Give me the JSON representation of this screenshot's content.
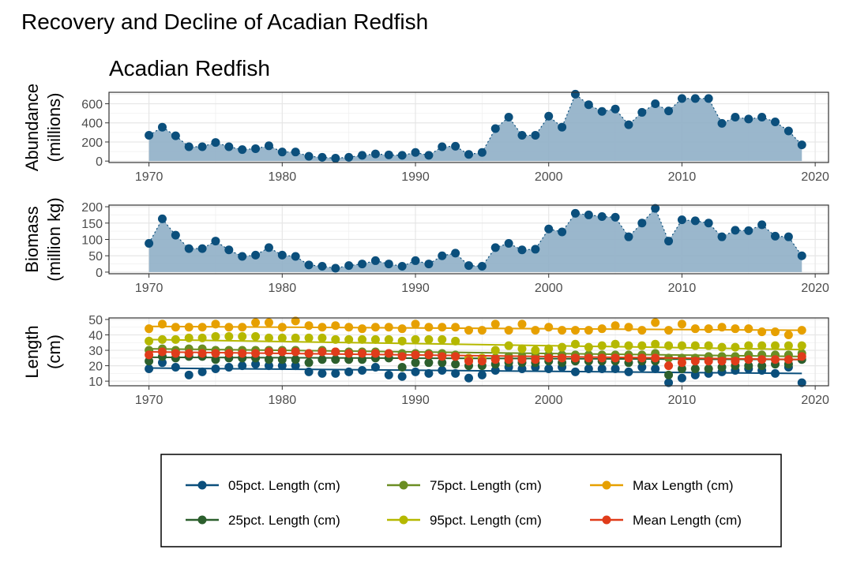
{
  "page_title": "Recovery and Decline of Acadian Redfish",
  "chart_data": {
    "type": "line",
    "subtitle": "Acadian Redfish",
    "years": [
      1970,
      1971,
      1972,
      1973,
      1974,
      1975,
      1976,
      1977,
      1978,
      1979,
      1980,
      1981,
      1982,
      1983,
      1984,
      1985,
      1986,
      1987,
      1988,
      1989,
      1990,
      1991,
      1992,
      1993,
      1994,
      1995,
      1996,
      1997,
      1998,
      1999,
      2000,
      2001,
      2002,
      2003,
      2004,
      2005,
      2006,
      2007,
      2008,
      2009,
      2010,
      2011,
      2012,
      2013,
      2014,
      2015,
      2016,
      2017,
      2018,
      2019
    ],
    "xlim": [
      1967,
      2021
    ],
    "xticks": [
      1970,
      1980,
      1990,
      2000,
      2010,
      2020
    ],
    "panels": [
      {
        "key": "abundance",
        "type": "area",
        "ylabel_line1": "Abundance",
        "ylabel_line2": "(millions)",
        "ylim": [
          -15,
          720
        ],
        "yticks": [
          0,
          200,
          400,
          600
        ],
        "values": [
          270,
          355,
          265,
          150,
          150,
          195,
          150,
          120,
          130,
          160,
          95,
          95,
          50,
          40,
          30,
          40,
          60,
          75,
          65,
          60,
          90,
          60,
          150,
          155,
          70,
          90,
          340,
          460,
          270,
          270,
          470,
          355,
          700,
          590,
          520,
          545,
          380,
          510,
          600,
          525,
          655,
          655,
          655,
          395,
          460,
          440,
          460,
          410,
          315,
          170
        ]
      },
      {
        "key": "biomass",
        "type": "area",
        "ylabel_line1": "Biomass",
        "ylabel_line2": "(million kg)",
        "ylim": [
          -5,
          205
        ],
        "yticks": [
          0,
          50,
          100,
          150,
          200
        ],
        "values": [
          88,
          163,
          113,
          72,
          72,
          95,
          68,
          48,
          52,
          75,
          52,
          48,
          22,
          18,
          12,
          20,
          25,
          35,
          25,
          18,
          35,
          25,
          50,
          58,
          20,
          18,
          75,
          88,
          68,
          70,
          132,
          123,
          180,
          175,
          170,
          168,
          108,
          150,
          195,
          95,
          160,
          157,
          150,
          108,
          128,
          127,
          145,
          110,
          108,
          50
        ]
      },
      {
        "key": "length",
        "type": "line",
        "ylabel_line1": "Length",
        "ylabel_line2": "(cm)",
        "ylim": [
          7,
          51
        ],
        "yticks": [
          10,
          20,
          30,
          40,
          50
        ],
        "series": [
          {
            "name": "05pct. Length (cm)",
            "color": "#0b4f7c",
            "fit": [
              18.5,
              15.0
            ],
            "values": [
              18,
              22,
              19,
              14,
              16,
              18,
              19,
              20,
              21,
              20,
              20,
              20,
              16,
              15,
              15,
              16,
              17,
              19,
              14,
              13,
              16,
              15,
              17,
              15,
              12,
              14,
              17,
              19,
              18,
              19,
              18,
              19,
              16,
              18,
              18,
              18,
              16,
              19,
              18,
              9,
              12,
              14,
              15,
              16,
              17,
              18,
              17,
              15,
              19,
              9
            ]
          },
          {
            "name": "25pct. Length (cm)",
            "color": "#2c5f2d",
            "fit": [
              25.5,
              24.0
            ],
            "values": [
              23,
              26,
              25,
              26,
              26,
              24,
              25,
              25,
              25,
              24,
              24,
              24,
              22,
              24,
              24,
              24,
              24,
              25,
              25,
              19,
              22,
              22,
              22,
              21,
              20,
              20,
              21,
              22,
              22,
              22,
              23,
              22,
              23,
              23,
              23,
              23,
              22,
              23,
              23,
              14,
              18,
              18,
              18,
              19,
              20,
              20,
              20,
              21,
              21,
              24
            ]
          },
          {
            "name": "75pct. Length (cm)",
            "color": "#6b8e23",
            "fit": [
              31.0,
              26.0
            ],
            "values": [
              30,
              31,
              30,
              31,
              31,
              30,
              30,
              30,
              30,
              30,
              30,
              30,
              28,
              30,
              29,
              29,
              29,
              29,
              28,
              28,
              28,
              28,
              28,
              27,
              24,
              24,
              25,
              26,
              26,
              26,
              27,
              27,
              27,
              27,
              27,
              27,
              27,
              27,
              28,
              25,
              25,
              25,
              26,
              26,
              26,
              27,
              27,
              27,
              27,
              28
            ]
          },
          {
            "name": "95pct. Length (cm)",
            "color": "#b5b800",
            "fit": [
              37.0,
              30.5
            ],
            "values": [
              36,
              37,
              37,
              38,
              38,
              39,
              39,
              39,
              39,
              38,
              38,
              38,
              38,
              38,
              37,
              37,
              37,
              37,
              37,
              36,
              37,
              37,
              37,
              36,
              25,
              25,
              30,
              33,
              31,
              30,
              31,
              32,
              34,
              32,
              33,
              34,
              33,
              33,
              34,
              33,
              33,
              33,
              33,
              32,
              32,
              33,
              33,
              33,
              33,
              33
            ]
          },
          {
            "name": "Max Length (cm)",
            "color": "#e6a000",
            "fit": [
              45.5,
              43.0
            ],
            "values": [
              44,
              47,
              45,
              45,
              45,
              47,
              45,
              45,
              48,
              48,
              45,
              49,
              46,
              45,
              46,
              45,
              44,
              45,
              45,
              44,
              47,
              45,
              45,
              45,
              43,
              43,
              47,
              43,
              47,
              43,
              45,
              43,
              43,
              43,
              44,
              46,
              45,
              43,
              48,
              43,
              47,
              44,
              44,
              45,
              44,
              44,
              42,
              42,
              40,
              43
            ]
          },
          {
            "name": "Mean Length (cm)",
            "color": "#e03c1a",
            "fit": [
              29.0,
              24.0
            ],
            "values": [
              27,
              29,
              28,
              28,
              28,
              28,
              28,
              28,
              28,
              29,
              29,
              29,
              28,
              29,
              29,
              28,
              28,
              28,
              28,
              26,
              27,
              27,
              26,
              26,
              23,
              23,
              24,
              24,
              24,
              24,
              25,
              25,
              25,
              25,
              25,
              25,
              25,
              25,
              25,
              20,
              22,
              23,
              23,
              23,
              23,
              24,
              24,
              24,
              24,
              26
            ]
          }
        ]
      }
    ],
    "legend": {
      "placement": "bottom"
    }
  }
}
